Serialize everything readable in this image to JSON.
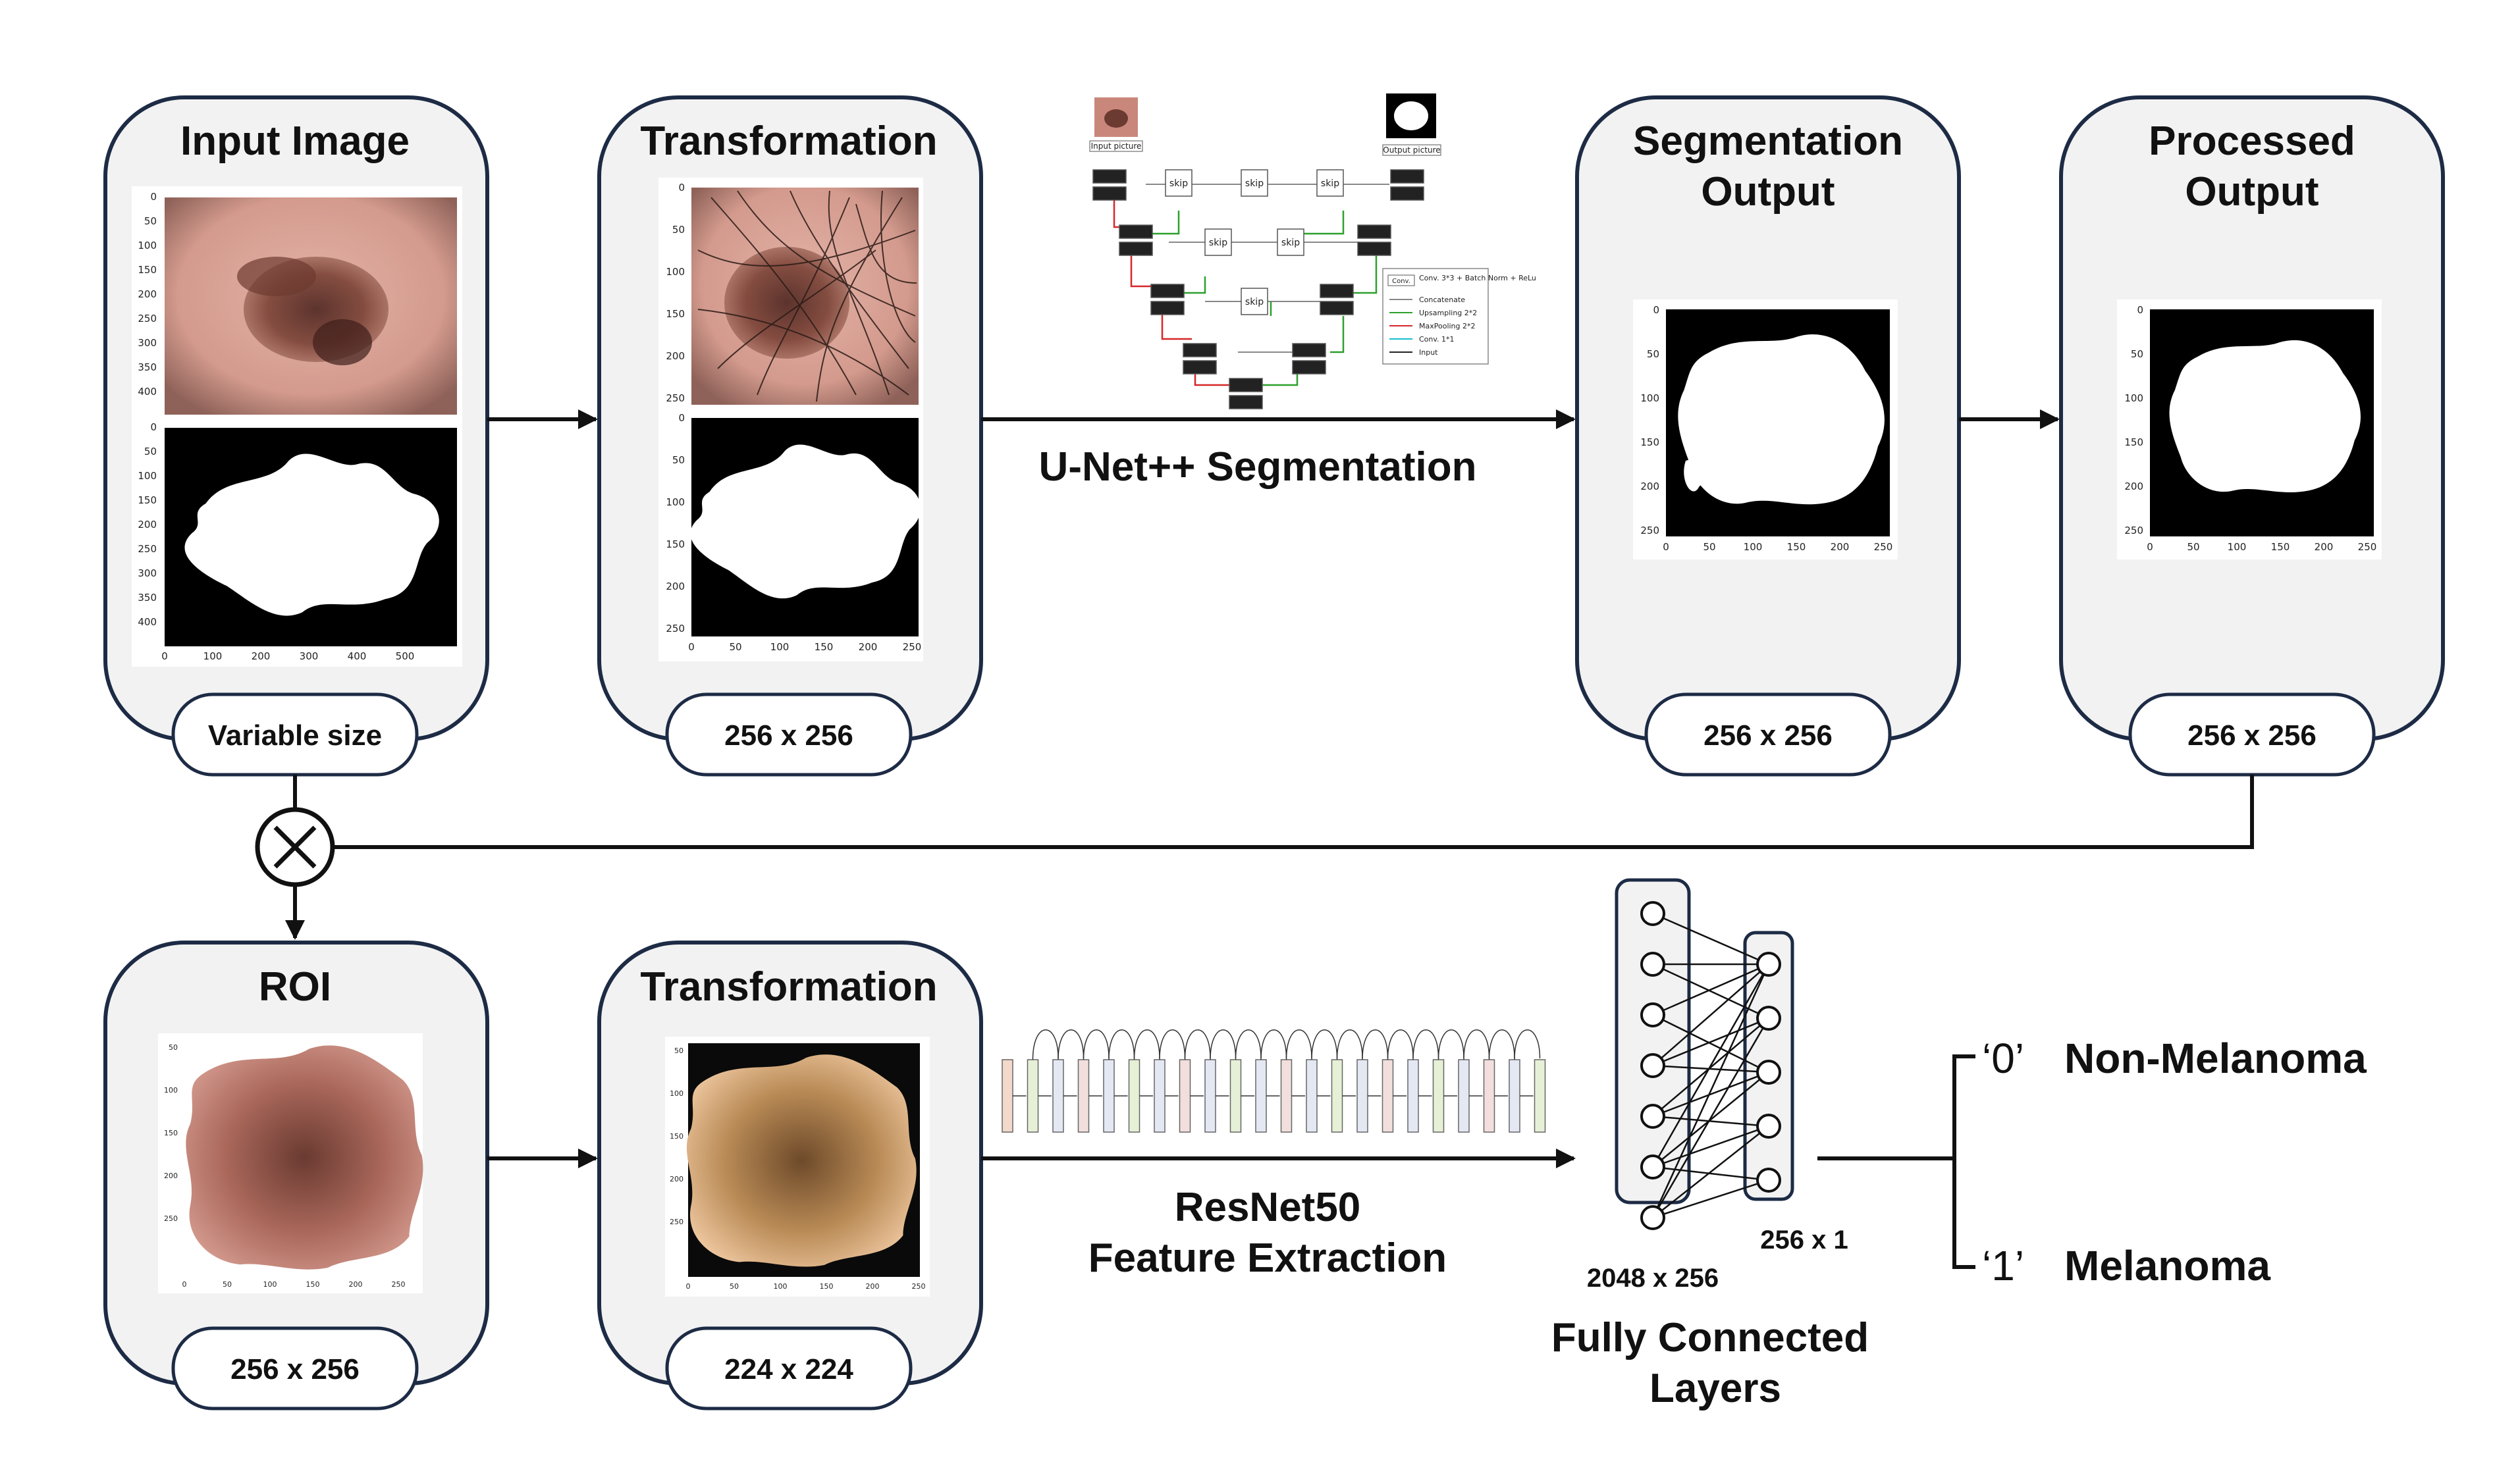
{
  "top_row": {
    "input_image": {
      "title": "Input Image",
      "size": "Variable size"
    },
    "transformation": {
      "title": "Transformation",
      "size": "256 x 256"
    },
    "segmentation_output": {
      "title_line1": "Segmentation",
      "title_line2": "Output",
      "size": "256 x 256"
    },
    "processed_output": {
      "title_line1": "Processed",
      "title_line2": "Output",
      "size": "256 x 256"
    }
  },
  "bottom_row": {
    "roi": {
      "title": "ROI",
      "size": "256 x 256"
    },
    "transformation": {
      "title": "Transformation",
      "size": "224 x 224"
    }
  },
  "arrow_labels": {
    "unet": "U-Net++ Segmentation",
    "resnet_line1": "ResNet50",
    "resnet_line2": "Feature Extraction"
  },
  "fc_layers": {
    "dim_left": "2048 x 256",
    "dim_right": "256 x 1",
    "label_line1": "Fully Connected",
    "label_line2": "Layers"
  },
  "outputs": {
    "class0_code": "‘0’",
    "class0_name": "Non-Melanoma",
    "class1_code": "‘1’",
    "class1_name": "Melanoma"
  },
  "unet_diagram": {
    "input_label": "Input picture",
    "output_label": "Output picture",
    "conv": "Conv.",
    "skip": "skip",
    "legend": [
      "Conv. 3*3 + Batch Norm + ReLu",
      "Concatenate",
      "Upsampling 2*2",
      "MaxPooling 2*2",
      "Conv. 1*1",
      "Input"
    ]
  },
  "axis_ticks": {
    "input_y": [
      "0",
      "50",
      "100",
      "150",
      "200",
      "250",
      "300",
      "350",
      "400"
    ],
    "input_x": [
      "0",
      "100",
      "200",
      "300",
      "400",
      "500"
    ],
    "t256": [
      "0",
      "50",
      "100",
      "150",
      "200",
      "250"
    ]
  },
  "colors": {
    "panel_fill": "#f2f2f2",
    "panel_border": "#1d2b45",
    "skin": "#d9a59a",
    "lesion": "#6b3a30"
  }
}
